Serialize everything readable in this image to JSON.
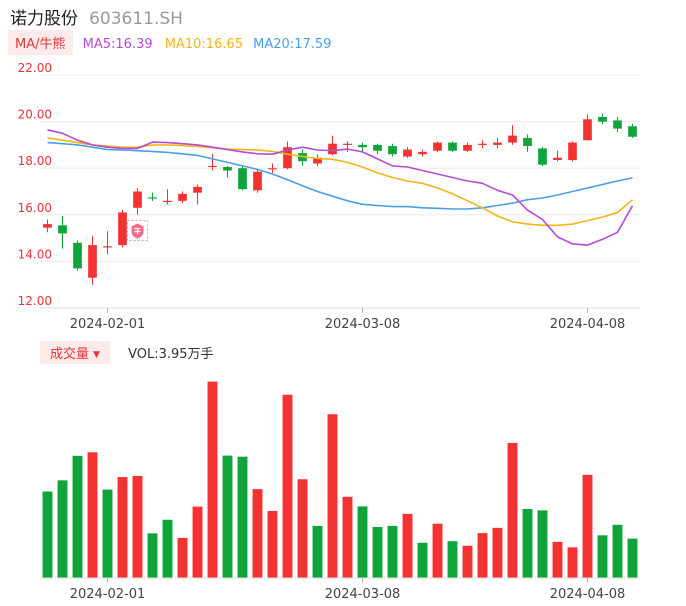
{
  "header": {
    "title": "诺力股份",
    "code": "603611.SH"
  },
  "legend": {
    "ma_button": "MA/牛熊",
    "ma5": "MA5:16.39",
    "ma10": "MA10:16.65",
    "ma20": "MA20:17.59"
  },
  "volume_header": {
    "button": "成交量",
    "value": "VOL:3.95万手"
  },
  "colors": {
    "up": "#f53232",
    "down": "#10a53a",
    "ma5": "#b54cd6",
    "ma10": "#f2b619",
    "ma20": "#4aa0e8",
    "axis_label": "#e8353a"
  },
  "marker_icon": "shield-coin-icon",
  "chart_data": [
    {
      "type": "candlestick",
      "y_ticks": [
        "22.00",
        "20.00",
        "18.00",
        "16.00",
        "14.00",
        "12.00"
      ],
      "ylim": [
        12,
        22
      ],
      "x_tick_labels": [
        {
          "index": 4,
          "label": "2024-02-01"
        },
        {
          "index": 21,
          "label": "2024-03-08"
        },
        {
          "index": 36,
          "label": "2024-04-08"
        }
      ],
      "candles": [
        {
          "o": 15.45,
          "c": 15.6,
          "h": 15.8,
          "l": 15.25
        },
        {
          "o": 15.55,
          "c": 15.2,
          "h": 15.95,
          "l": 14.55
        },
        {
          "o": 14.8,
          "c": 13.7,
          "h": 14.9,
          "l": 13.6
        },
        {
          "o": 13.3,
          "c": 14.7,
          "h": 15.1,
          "l": 13.0
        },
        {
          "o": 14.65,
          "c": 14.65,
          "h": 15.3,
          "l": 14.3
        },
        {
          "o": 14.7,
          "c": 16.1,
          "h": 16.2,
          "l": 14.6
        },
        {
          "o": 16.3,
          "c": 17.0,
          "h": 17.15,
          "l": 16.0
        },
        {
          "o": 16.75,
          "c": 16.7,
          "h": 16.95,
          "l": 16.6
        },
        {
          "o": 16.6,
          "c": 16.6,
          "h": 17.1,
          "l": 16.45
        },
        {
          "o": 16.6,
          "c": 16.9,
          "h": 17.0,
          "l": 16.5
        },
        {
          "o": 16.95,
          "c": 17.2,
          "h": 17.3,
          "l": 16.45
        },
        {
          "o": 18.05,
          "c": 18.1,
          "h": 18.6,
          "l": 17.9
        },
        {
          "o": 18.05,
          "c": 17.9,
          "h": 18.1,
          "l": 17.6
        },
        {
          "o": 18.0,
          "c": 17.1,
          "h": 18.1,
          "l": 17.05
        },
        {
          "o": 17.05,
          "c": 17.85,
          "h": 17.95,
          "l": 16.95
        },
        {
          "o": 18.0,
          "c": 18.0,
          "h": 18.2,
          "l": 17.8
        },
        {
          "o": 18.0,
          "c": 18.9,
          "h": 19.15,
          "l": 17.95
        },
        {
          "o": 18.65,
          "c": 18.3,
          "h": 18.8,
          "l": 18.1
        },
        {
          "o": 18.2,
          "c": 18.45,
          "h": 18.6,
          "l": 18.1
        },
        {
          "o": 18.6,
          "c": 19.05,
          "h": 19.4,
          "l": 18.55
        },
        {
          "o": 19.05,
          "c": 19.05,
          "h": 19.15,
          "l": 18.7
        },
        {
          "o": 19.0,
          "c": 18.9,
          "h": 19.1,
          "l": 18.7
        },
        {
          "o": 19.0,
          "c": 18.75,
          "h": 19.05,
          "l": 18.6
        },
        {
          "o": 18.95,
          "c": 18.6,
          "h": 19.05,
          "l": 18.5
        },
        {
          "o": 18.5,
          "c": 18.8,
          "h": 18.9,
          "l": 18.45
        },
        {
          "o": 18.6,
          "c": 18.7,
          "h": 18.8,
          "l": 18.5
        },
        {
          "o": 18.75,
          "c": 19.1,
          "h": 19.15,
          "l": 18.7
        },
        {
          "o": 19.1,
          "c": 18.75,
          "h": 19.15,
          "l": 18.7
        },
        {
          "o": 18.75,
          "c": 19.0,
          "h": 19.1,
          "l": 18.7
        },
        {
          "o": 19.0,
          "c": 19.05,
          "h": 19.2,
          "l": 18.85
        },
        {
          "o": 19.0,
          "c": 19.1,
          "h": 19.3,
          "l": 18.85
        },
        {
          "o": 19.1,
          "c": 19.4,
          "h": 19.85,
          "l": 19.0
        },
        {
          "o": 19.3,
          "c": 18.95,
          "h": 19.45,
          "l": 18.7
        },
        {
          "o": 18.85,
          "c": 18.15,
          "h": 18.9,
          "l": 18.1
        },
        {
          "o": 18.35,
          "c": 18.45,
          "h": 18.75,
          "l": 18.3
        },
        {
          "o": 18.35,
          "c": 19.1,
          "h": 19.15,
          "l": 18.3
        },
        {
          "o": 19.2,
          "c": 20.1,
          "h": 20.3,
          "l": 19.2
        },
        {
          "o": 20.2,
          "c": 20.0,
          "h": 20.35,
          "l": 19.9
        },
        {
          "o": 20.05,
          "c": 19.7,
          "h": 20.2,
          "l": 19.55
        },
        {
          "o": 19.8,
          "c": 19.35,
          "h": 19.9,
          "l": 19.3
        }
      ],
      "ma5": [
        19.65,
        19.5,
        19.2,
        19.0,
        18.9,
        18.85,
        18.85,
        19.12,
        19.1,
        19.05,
        19.0,
        18.9,
        18.8,
        18.7,
        18.62,
        18.6,
        18.78,
        18.9,
        18.78,
        18.75,
        18.82,
        18.7,
        18.4,
        18.1,
        18.05,
        17.9,
        17.75,
        17.6,
        17.45,
        17.35,
        17.05,
        16.85,
        16.2,
        15.8,
        15.05,
        14.75,
        14.7,
        14.95,
        15.25,
        16.39
      ],
      "ma10": [
        19.3,
        19.2,
        19.1,
        19.0,
        18.95,
        18.9,
        18.9,
        19.0,
        19.0,
        18.97,
        18.93,
        18.88,
        18.82,
        18.8,
        18.78,
        18.72,
        18.6,
        18.5,
        18.42,
        18.38,
        18.25,
        18.05,
        17.8,
        17.6,
        17.45,
        17.35,
        17.15,
        16.9,
        16.6,
        16.3,
        15.95,
        15.7,
        15.6,
        15.55,
        15.55,
        15.6,
        15.75,
        15.9,
        16.1,
        16.65
      ],
      "ma20": [
        19.1,
        19.05,
        19.0,
        18.9,
        18.8,
        18.78,
        18.75,
        18.72,
        18.68,
        18.62,
        18.55,
        18.4,
        18.25,
        18.1,
        17.95,
        17.75,
        17.5,
        17.25,
        17.0,
        16.8,
        16.6,
        16.45,
        16.4,
        16.35,
        16.35,
        16.3,
        16.28,
        16.25,
        16.25,
        16.3,
        16.4,
        16.5,
        16.65,
        16.72,
        16.85,
        17.0,
        17.15,
        17.3,
        17.45,
        17.59
      ]
    },
    {
      "type": "bar",
      "name": "成交量",
      "ylim": [
        0,
        9.5
      ],
      "values": [
        3.95,
        4.46,
        5.58,
        5.74,
        4.04,
        4.61,
        4.66,
        2.04,
        2.66,
        1.83,
        3.26,
        8.97,
        5.59,
        5.54,
        4.06,
        3.06,
        8.37,
        4.51,
        2.38,
        7.48,
        3.71,
        3.27,
        2.33,
        2.38,
        2.93,
        1.61,
        2.48,
        1.68,
        1.47,
        2.05,
        2.29,
        6.17,
        3.15,
        3.09,
        1.65,
        1.4,
        4.71,
        1.95,
        2.43,
        1.8
      ],
      "colors": [
        "down",
        "down",
        "down",
        "up",
        "down",
        "up",
        "up",
        "down",
        "down",
        "up",
        "up",
        "up",
        "down",
        "down",
        "up",
        "up",
        "up",
        "up",
        "down",
        "up",
        "up",
        "down",
        "down",
        "down",
        "up",
        "down",
        "up",
        "down",
        "up",
        "up",
        "up",
        "up",
        "down",
        "down",
        "up",
        "up",
        "up",
        "down",
        "down",
        "down"
      ],
      "x_tick_labels": [
        {
          "index": 4,
          "label": "2024-02-01"
        },
        {
          "index": 21,
          "label": "2024-03-08"
        },
        {
          "index": 36,
          "label": "2024-04-08"
        }
      ]
    }
  ]
}
